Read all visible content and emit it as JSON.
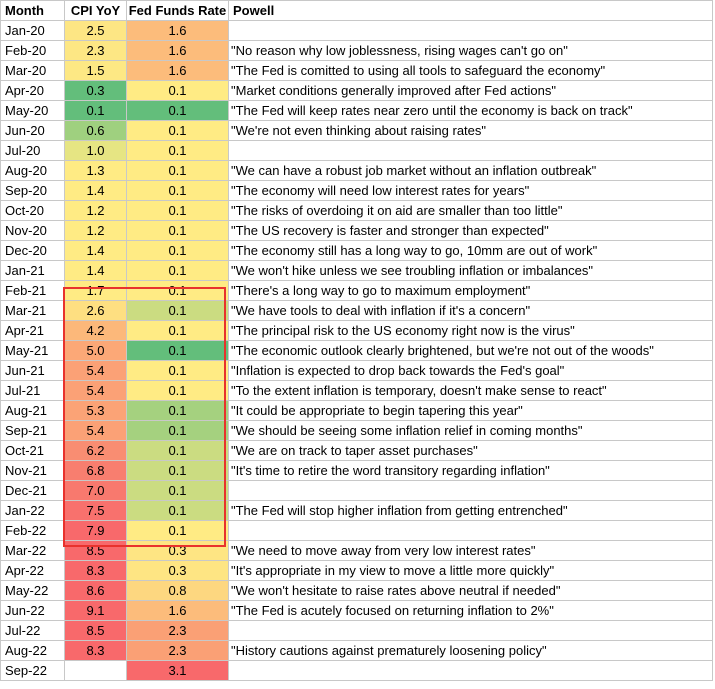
{
  "headers": {
    "month": "Month",
    "cpi": "CPI YoY",
    "fed": "Fed Funds Rate",
    "powell": "Powell"
  },
  "highlight_color": "#e8322d",
  "rows": [
    {
      "month": "Jan-20",
      "cpi": "2.5",
      "fed": "1.6",
      "quote": "",
      "cpi_color": "#fde684",
      "fed_color": "#fcbc7b"
    },
    {
      "month": "Feb-20",
      "cpi": "2.3",
      "fed": "1.6",
      "quote": "\"No reason why low joblessness, rising wages can't go on\"",
      "cpi_color": "#fde784",
      "fed_color": "#fcbc7b"
    },
    {
      "month": "Mar-20",
      "cpi": "1.5",
      "fed": "1.6",
      "quote": "\"The Fed is comitted to using all tools to safeguard the economy\"",
      "cpi_color": "#fde884",
      "fed_color": "#fcbc7b"
    },
    {
      "month": "Apr-20",
      "cpi": "0.3",
      "fed": "0.1",
      "quote": "\"Market conditions generally improved after Fed actions\"",
      "cpi_color": "#63be7b",
      "fed_color": "#ffeb84"
    },
    {
      "month": "May-20",
      "cpi": "0.1",
      "fed": "0.1",
      "quote": "\"The Fed will keep rates near zero until the economy is back on track\"",
      "cpi_color": "#63be7b",
      "fed_color": "#63be7b"
    },
    {
      "month": "Jun-20",
      "cpi": "0.6",
      "fed": "0.1",
      "quote": "\"We're not even thinking about raising rates\"",
      "cpi_color": "#9fd07f",
      "fed_color": "#ffeb84"
    },
    {
      "month": "Jul-20",
      "cpi": "1.0",
      "fed": "0.1",
      "quote": "",
      "cpi_color": "#e6e583",
      "fed_color": "#ffeb84"
    },
    {
      "month": "Aug-20",
      "cpi": "1.3",
      "fed": "0.1",
      "quote": "\"We can have a robust job market without an inflation outbreak\"",
      "cpi_color": "#ffeb84",
      "fed_color": "#ffeb84"
    },
    {
      "month": "Sep-20",
      "cpi": "1.4",
      "fed": "0.1",
      "quote": "\"The economy will need low interest rates for years\"",
      "cpi_color": "#ffeb84",
      "fed_color": "#ffeb84"
    },
    {
      "month": "Oct-20",
      "cpi": "1.2",
      "fed": "0.1",
      "quote": "\"The risks of overdoing it on aid are smaller than too little\"",
      "cpi_color": "#ffeb84",
      "fed_color": "#ffeb84"
    },
    {
      "month": "Nov-20",
      "cpi": "1.2",
      "fed": "0.1",
      "quote": "\"The US recovery is faster and stronger than expected\"",
      "cpi_color": "#ffeb84",
      "fed_color": "#ffeb84"
    },
    {
      "month": "Dec-20",
      "cpi": "1.4",
      "fed": "0.1",
      "quote": "\"The economy still has a long way to go, 10mm are out of work\"",
      "cpi_color": "#ffeb84",
      "fed_color": "#ffeb84"
    },
    {
      "month": "Jan-21",
      "cpi": "1.4",
      "fed": "0.1",
      "quote": "\"We won't hike unless we see troubling inflation or imbalances\"",
      "cpi_color": "#ffeb84",
      "fed_color": "#ffeb84"
    },
    {
      "month": "Feb-21",
      "cpi": "1.7",
      "fed": "0.1",
      "quote": "\"There's a long way to go to maximum employment\"",
      "cpi_color": "#ffeb84",
      "fed_color": "#ffeb84"
    },
    {
      "month": "Mar-21",
      "cpi": "2.6",
      "fed": "0.1",
      "quote": "\"We have tools to deal with inflation if it's a concern\"",
      "cpi_color": "#fedf81",
      "fed_color": "#cbdc81"
    },
    {
      "month": "Apr-21",
      "cpi": "4.2",
      "fed": "0.1",
      "quote": "\"The principal risk to the US economy right now is the virus\"",
      "cpi_color": "#fcb87a",
      "fed_color": "#ffeb84"
    },
    {
      "month": "May-21",
      "cpi": "5.0",
      "fed": "0.1",
      "quote": "\"The economic outlook clearly brightened, but we're not out of the woods\"",
      "cpi_color": "#fca877",
      "fed_color": "#63be7b"
    },
    {
      "month": "Jun-21",
      "cpi": "5.4",
      "fed": "0.1",
      "quote": "\"Inflation is expected to drop back towards the Fed's goal\"",
      "cpi_color": "#fba176",
      "fed_color": "#ffeb84"
    },
    {
      "month": "Jul-21",
      "cpi": "5.4",
      "fed": "0.1",
      "quote": "\"To the extent inflation is temporary, doesn't make sense to react\"",
      "cpi_color": "#fba176",
      "fed_color": "#ffeb84"
    },
    {
      "month": "Aug-21",
      "cpi": "5.3",
      "fed": "0.1",
      "quote": "\"It could be appropriate to begin tapering this year\"",
      "cpi_color": "#fba376",
      "fed_color": "#a5d17f"
    },
    {
      "month": "Sep-21",
      "cpi": "5.4",
      "fed": "0.1",
      "quote": "\"We should be seeing some inflation relief in coming months\"",
      "cpi_color": "#fba176",
      "fed_color": "#a5d17f"
    },
    {
      "month": "Oct-21",
      "cpi": "6.2",
      "fed": "0.1",
      "quote": "\"We are on track to taper asset purchases\"",
      "cpi_color": "#f98d72",
      "fed_color": "#cbdc81"
    },
    {
      "month": "Nov-21",
      "cpi": "6.8",
      "fed": "0.1",
      "quote": "\"It's time to retire the word transitory regarding inflation\"",
      "cpi_color": "#f87e6f",
      "fed_color": "#cbdc81"
    },
    {
      "month": "Dec-21",
      "cpi": "7.0",
      "fed": "0.1",
      "quote": "",
      "cpi_color": "#f8796e",
      "fed_color": "#cbdc81"
    },
    {
      "month": "Jan-22",
      "cpi": "7.5",
      "fed": "0.1",
      "quote": "\"The Fed will stop higher inflation from getting entrenched\"",
      "cpi_color": "#f8716d",
      "fed_color": "#cbdc81"
    },
    {
      "month": "Feb-22",
      "cpi": "7.9",
      "fed": "0.1",
      "quote": "",
      "cpi_color": "#f8696b",
      "fed_color": "#ffeb84"
    },
    {
      "month": "Mar-22",
      "cpi": "8.5",
      "fed": "0.3",
      "quote": "\"We need to move away from very low interest rates\"",
      "cpi_color": "#f8696b",
      "fed_color": "#fee583"
    },
    {
      "month": "Apr-22",
      "cpi": "8.3",
      "fed": "0.3",
      "quote": "\"It's appropriate in my view to move a little more quickly\"",
      "cpi_color": "#f8696b",
      "fed_color": "#fee583"
    },
    {
      "month": "May-22",
      "cpi": "8.6",
      "fed": "0.8",
      "quote": "\"We won't hesitate to raise rates above neutral if needed\"",
      "cpi_color": "#f8696b",
      "fed_color": "#fdd780"
    },
    {
      "month": "Jun-22",
      "cpi": "9.1",
      "fed": "1.6",
      "quote": "\"The Fed is acutely focused on returning inflation to 2%\"",
      "cpi_color": "#f8696b",
      "fed_color": "#fcbc7b"
    },
    {
      "month": "Jul-22",
      "cpi": "8.5",
      "fed": "2.3",
      "quote": "",
      "cpi_color": "#f8696b",
      "fed_color": "#faa075"
    },
    {
      "month": "Aug-22",
      "cpi": "8.3",
      "fed": "2.3",
      "quote": "\"History cautions against prematurely loosening policy\"",
      "cpi_color": "#f8696b",
      "fed_color": "#faa075"
    },
    {
      "month": "Sep-22",
      "cpi": "",
      "fed": "3.1",
      "quote": "",
      "cpi_color": "#ffffff",
      "fed_color": "#f8696b"
    }
  ]
}
